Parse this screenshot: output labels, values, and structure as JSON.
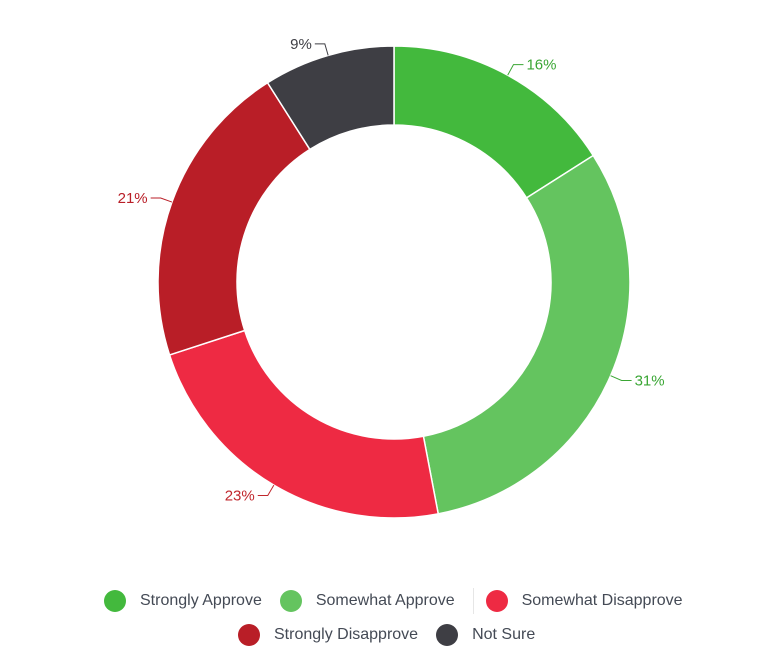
{
  "chart_data": {
    "type": "pie",
    "donut": true,
    "slices": [
      {
        "label": "Strongly Approve",
        "value": 16,
        "value_label": "16%",
        "color": "#43b93d",
        "label_color": "#3aa634"
      },
      {
        "label": "Somewhat Approve",
        "value": 31,
        "value_label": "31%",
        "color": "#64c45f",
        "label_color": "#3aa634"
      },
      {
        "label": "Somewhat Disapprove",
        "value": 23,
        "value_label": "23%",
        "color": "#ee2a43",
        "label_color": "#c1272d"
      },
      {
        "label": "Strongly Disapprove",
        "value": 21,
        "value_label": "21%",
        "color": "#b91e27",
        "label_color": "#b91e27"
      },
      {
        "label": "Not Sure",
        "value": 9,
        "value_label": "9%",
        "color": "#3e3e44",
        "label_color": "#3e3e44"
      }
    ],
    "legend_position": "bottom"
  }
}
